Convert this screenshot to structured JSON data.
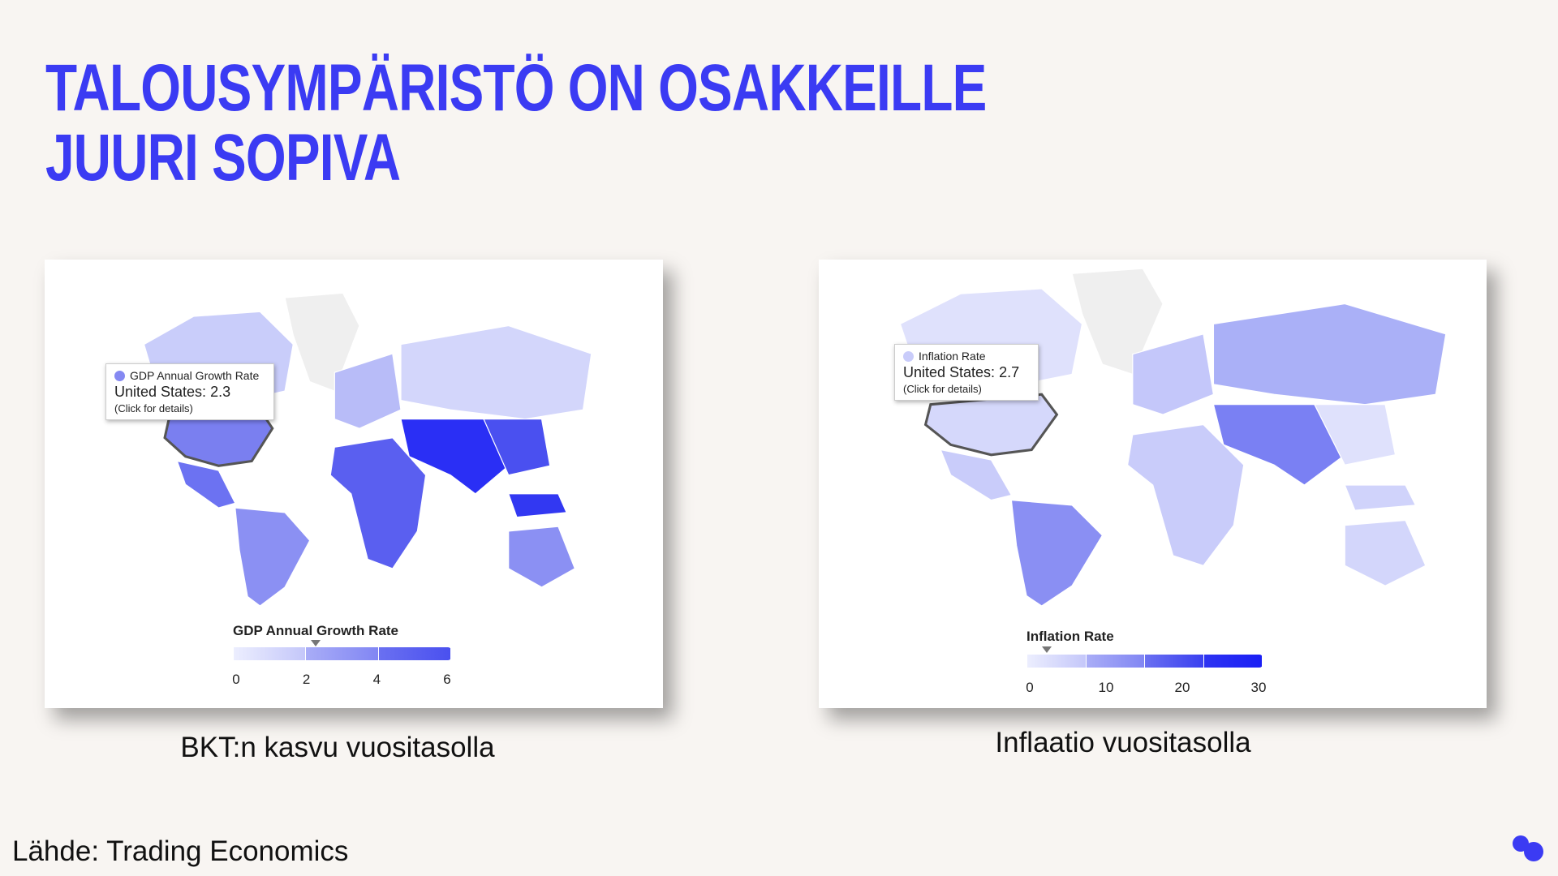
{
  "header": {
    "title_lines": [
      "TALOUSYMPÄRISTÖ ON OSAKKEILLE",
      "JUURI SOPIVA"
    ]
  },
  "panels": [
    {
      "tooltip": {
        "series": "GDP Annual Growth Rate",
        "value_text": "United States: 2.3",
        "hint": "(Click for details)"
      },
      "legend": {
        "title": "GDP Annual Growth Rate",
        "ticks": [
          0,
          2,
          4,
          6
        ]
      },
      "caption": "BKT:n kasvu vuositasolla"
    },
    {
      "tooltip": {
        "series": "Inflation Rate",
        "value_text": "United States: 2.7",
        "hint": "(Click for details)"
      },
      "legend": {
        "title": "Inflation Rate",
        "ticks": [
          0,
          10,
          20,
          30
        ]
      },
      "caption": "Inflaatio vuositasolla"
    }
  ],
  "footer": {
    "source": "Lähde: Trading Economics"
  }
}
